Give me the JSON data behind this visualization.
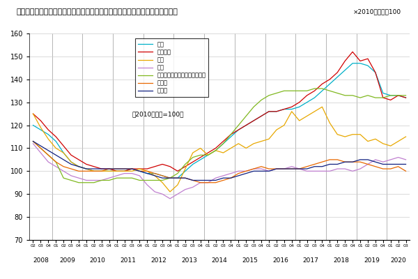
{
  "title": "＜不動産価格指数（商業用不動産）（令和２年第３四半期分　季節調整値）＞",
  "title_note": "×2010年平均＝100",
  "subtitle": "（2010年平均=100）",
  "ylim": [
    70,
    160
  ],
  "yticks": [
    70,
    80,
    90,
    100,
    110,
    120,
    130,
    140,
    150,
    160
  ],
  "legend_labels": [
    "店舗",
    "オフィス",
    "倉庫",
    "工場",
    "マンション・アパート（一樹）",
    "商業地",
    "工業地"
  ],
  "colors": [
    "#00b0c8",
    "#d00000",
    "#e8a800",
    "#c080d0",
    "#80b820",
    "#e86800",
    "#102080"
  ],
  "quarter_labels": [
    "02",
    "03",
    "04",
    "01",
    "02",
    "03",
    "04",
    "01",
    "02",
    "03",
    "04",
    "01",
    "02",
    "03",
    "04",
    "01",
    "02",
    "03",
    "04",
    "01",
    "02",
    "03",
    "04",
    "01",
    "02",
    "03",
    "04",
    "01",
    "02",
    "03",
    "04",
    "01",
    "02",
    "03",
    "04",
    "01",
    "02",
    "03",
    "04",
    "01",
    "02",
    "03",
    "04",
    "01",
    "02",
    "03",
    "04",
    "01",
    "02",
    "03"
  ],
  "year_positions": [
    0,
    3,
    7,
    11,
    15,
    19,
    23,
    27,
    31,
    35,
    39,
    43,
    47
  ],
  "year_labels": [
    "2008",
    "2009",
    "2010",
    "2011",
    "2012",
    "2013",
    "2014",
    "2015",
    "2016",
    "2017",
    "2018",
    "2019",
    "2020"
  ],
  "series": {
    "店舗": [
      120,
      118,
      116,
      113,
      108,
      104,
      102,
      101,
      100,
      100,
      100,
      100,
      100,
      101,
      100,
      99,
      99,
      98,
      97,
      97,
      100,
      103,
      105,
      107,
      109,
      112,
      115,
      118,
      120,
      122,
      124,
      126,
      126,
      127,
      127,
      128,
      130,
      132,
      135,
      138,
      141,
      144,
      147,
      147,
      146,
      143,
      134,
      133,
      133,
      132
    ],
    "オフィス": [
      125,
      122,
      118,
      115,
      111,
      107,
      105,
      103,
      102,
      101,
      101,
      100,
      100,
      101,
      101,
      101,
      102,
      103,
      102,
      100,
      102,
      104,
      106,
      108,
      110,
      113,
      116,
      118,
      120,
      122,
      124,
      126,
      126,
      127,
      128,
      130,
      133,
      135,
      138,
      140,
      143,
      148,
      152,
      148,
      149,
      143,
      132,
      131,
      133,
      132
    ],
    "倉庫": [
      125,
      119,
      114,
      110,
      108,
      104,
      102,
      101,
      100,
      100,
      100,
      100,
      100,
      100,
      101,
      100,
      98,
      95,
      91,
      94,
      101,
      108,
      110,
      107,
      109,
      108,
      110,
      112,
      110,
      112,
      113,
      114,
      118,
      120,
      126,
      122,
      124,
      126,
      128,
      121,
      116,
      115,
      116,
      116,
      113,
      114,
      112,
      111,
      113,
      115
    ],
    "工場": [
      112,
      108,
      104,
      102,
      100,
      98,
      97,
      96,
      96,
      96,
      97,
      98,
      99,
      99,
      98,
      94,
      91,
      90,
      88,
      90,
      92,
      93,
      95,
      95,
      97,
      98,
      99,
      100,
      100,
      101,
      101,
      100,
      101,
      101,
      102,
      101,
      100,
      100,
      100,
      100,
      101,
      101,
      100,
      101,
      103,
      105,
      104,
      105,
      106,
      105
    ],
    "マンション・アパート（一樹）": [
      113,
      110,
      107,
      104,
      97,
      96,
      95,
      95,
      95,
      96,
      96,
      97,
      97,
      97,
      96,
      96,
      96,
      96,
      97,
      99,
      103,
      106,
      107,
      107,
      109,
      112,
      116,
      120,
      124,
      128,
      131,
      133,
      134,
      135,
      135,
      135,
      135,
      136,
      136,
      135,
      134,
      133,
      133,
      132,
      133,
      132,
      132,
      133,
      133,
      133
    ],
    "商業地": [
      113,
      110,
      107,
      104,
      102,
      101,
      100,
      100,
      100,
      100,
      101,
      101,
      101,
      101,
      100,
      100,
      99,
      98,
      97,
      97,
      97,
      96,
      95,
      95,
      95,
      96,
      97,
      99,
      100,
      101,
      102,
      101,
      101,
      101,
      101,
      101,
      102,
      103,
      104,
      105,
      105,
      104,
      104,
      104,
      103,
      102,
      101,
      101,
      102,
      100
    ],
    "工業地": [
      113,
      111,
      109,
      107,
      105,
      103,
      102,
      101,
      101,
      101,
      101,
      101,
      101,
      101,
      100,
      99,
      98,
      97,
      97,
      97,
      97,
      96,
      96,
      96,
      96,
      97,
      97,
      98,
      99,
      100,
      100,
      100,
      101,
      101,
      101,
      101,
      101,
      102,
      102,
      103,
      103,
      104,
      104,
      105,
      105,
      104,
      103,
      103,
      103,
      103
    ]
  }
}
